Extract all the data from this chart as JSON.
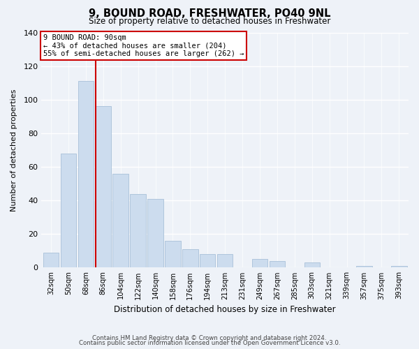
{
  "title": "9, BOUND ROAD, FRESHWATER, PO40 9NL",
  "subtitle": "Size of property relative to detached houses in Freshwater",
  "xlabel": "Distribution of detached houses by size in Freshwater",
  "ylabel": "Number of detached properties",
  "bar_labels": [
    "32sqm",
    "50sqm",
    "68sqm",
    "86sqm",
    "104sqm",
    "122sqm",
    "140sqm",
    "158sqm",
    "176sqm",
    "194sqm",
    "213sqm",
    "231sqm",
    "249sqm",
    "267sqm",
    "285sqm",
    "303sqm",
    "321sqm",
    "339sqm",
    "357sqm",
    "375sqm",
    "393sqm"
  ],
  "bar_values": [
    9,
    68,
    111,
    96,
    56,
    44,
    41,
    16,
    11,
    8,
    8,
    0,
    5,
    4,
    0,
    3,
    0,
    0,
    1,
    0,
    1
  ],
  "bar_color": "#ccdcee",
  "bar_edge_color": "#a8c0d8",
  "ylim": [
    0,
    140
  ],
  "yticks": [
    0,
    20,
    40,
    60,
    80,
    100,
    120,
    140
  ],
  "vline_color": "#cc0000",
  "annotation_title": "9 BOUND ROAD: 90sqm",
  "annotation_line1": "← 43% of detached houses are smaller (204)",
  "annotation_line2": "55% of semi-detached houses are larger (262) →",
  "annotation_box_color": "#ffffff",
  "annotation_box_edge": "#cc0000",
  "footer_line1": "Contains HM Land Registry data © Crown copyright and database right 2024.",
  "footer_line2": "Contains public sector information licensed under the Open Government Licence v3.0.",
  "background_color": "#eef2f8"
}
